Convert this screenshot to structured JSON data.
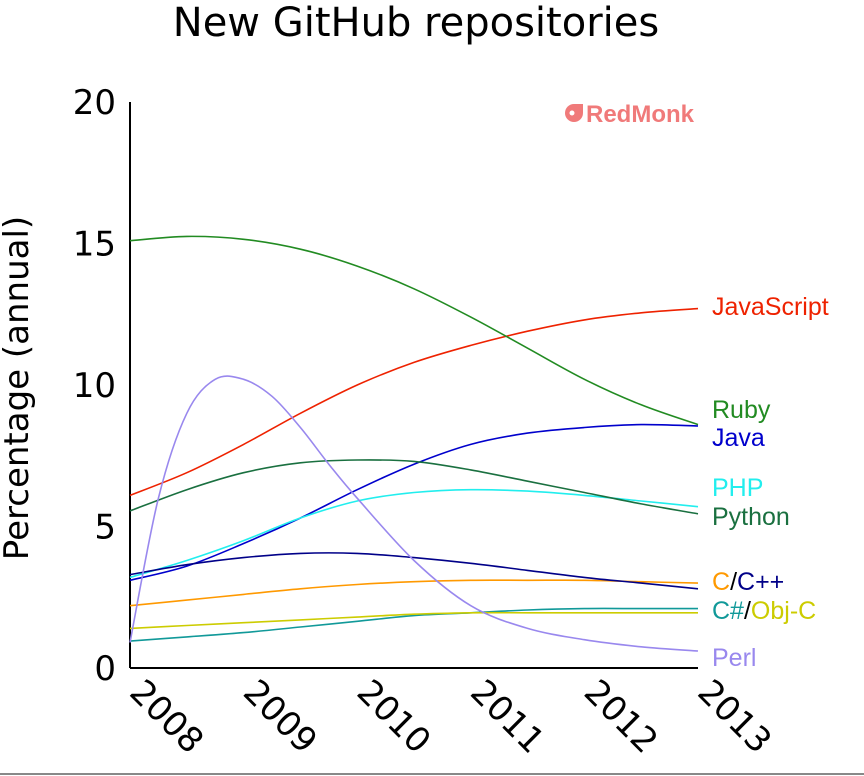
{
  "chart_data": {
    "type": "line",
    "title": "New GitHub repositories",
    "ylabel": "Percentage (annual)",
    "xlabel": "",
    "ylim": [
      0,
      20
    ],
    "xlim": [
      2008,
      2013
    ],
    "yticks": [
      0,
      5,
      10,
      15,
      20
    ],
    "xticks": [
      "2008",
      "2009",
      "2010",
      "2011",
      "2012",
      "2013"
    ],
    "grid": false,
    "logo_text": "RedMonk",
    "series": [
      {
        "key": "javascript",
        "name": "JavaScript",
        "color": "#ee2200",
        "x": [
          2008,
          2008.5,
          2009,
          2009.5,
          2010,
          2010.5,
          2011,
          2011.5,
          2012,
          2012.5,
          2013
        ],
        "y": [
          6.1,
          6.9,
          7.9,
          9.0,
          10.0,
          10.8,
          11.4,
          11.9,
          12.3,
          12.55,
          12.7
        ]
      },
      {
        "key": "ruby",
        "name": "Ruby",
        "color": "#228b22",
        "x": [
          2008,
          2008.5,
          2009,
          2009.5,
          2010,
          2010.5,
          2011,
          2011.5,
          2012,
          2012.5,
          2013
        ],
        "y": [
          15.1,
          15.25,
          15.15,
          14.8,
          14.2,
          13.4,
          12.4,
          11.3,
          10.2,
          9.3,
          8.6
        ]
      },
      {
        "key": "java",
        "name": "Java",
        "color": "#0000cc",
        "x": [
          2008,
          2008.5,
          2009,
          2009.5,
          2010,
          2010.5,
          2011,
          2011.5,
          2012,
          2012.5,
          2013
        ],
        "y": [
          3.1,
          3.6,
          4.4,
          5.3,
          6.3,
          7.2,
          7.9,
          8.3,
          8.5,
          8.6,
          8.55
        ]
      },
      {
        "key": "php",
        "name": "PHP",
        "color": "#22eeee",
        "x": [
          2008,
          2008.5,
          2009,
          2009.5,
          2010,
          2010.5,
          2011,
          2011.5,
          2012,
          2012.5,
          2013
        ],
        "y": [
          3.2,
          3.8,
          4.5,
          5.3,
          5.9,
          6.2,
          6.3,
          6.25,
          6.1,
          5.9,
          5.7
        ]
      },
      {
        "key": "python",
        "name": "Python",
        "color": "#1a7040",
        "x": [
          2008,
          2008.5,
          2009,
          2009.5,
          2010,
          2010.5,
          2011,
          2011.5,
          2012,
          2012.5,
          2013
        ],
        "y": [
          5.55,
          6.3,
          6.9,
          7.25,
          7.35,
          7.3,
          7.0,
          6.6,
          6.2,
          5.8,
          5.45
        ]
      },
      {
        "key": "c",
        "name": "C",
        "color": "#ff9900",
        "x": [
          2008,
          2008.5,
          2009,
          2009.5,
          2010,
          2010.5,
          2011,
          2011.5,
          2012,
          2012.5,
          2013
        ],
        "y": [
          2.2,
          2.4,
          2.6,
          2.8,
          2.95,
          3.05,
          3.1,
          3.1,
          3.1,
          3.05,
          3.0
        ]
      },
      {
        "key": "cpp",
        "name": "C++",
        "color": "#000088",
        "x": [
          2008,
          2008.5,
          2009,
          2009.5,
          2010,
          2010.5,
          2011,
          2011.5,
          2012,
          2012.5,
          2013
        ],
        "y": [
          3.3,
          3.65,
          3.9,
          4.05,
          4.05,
          3.9,
          3.7,
          3.45,
          3.2,
          3.0,
          2.8
        ]
      },
      {
        "key": "csharp",
        "name": "C#",
        "color": "#119999",
        "x": [
          2008,
          2008.5,
          2009,
          2009.5,
          2010,
          2010.5,
          2011,
          2011.5,
          2012,
          2012.5,
          2013
        ],
        "y": [
          0.95,
          1.1,
          1.25,
          1.45,
          1.65,
          1.85,
          1.95,
          2.05,
          2.1,
          2.1,
          2.1
        ]
      },
      {
        "key": "objc",
        "name": "Obj-C",
        "color": "#cccc00",
        "x": [
          2008,
          2008.5,
          2009,
          2009.5,
          2010,
          2010.5,
          2011,
          2011.5,
          2012,
          2012.5,
          2013
        ],
        "y": [
          1.4,
          1.5,
          1.6,
          1.7,
          1.8,
          1.9,
          1.95,
          1.95,
          1.95,
          1.95,
          1.95
        ]
      },
      {
        "key": "perl",
        "name": "Perl",
        "color": "#9988ee",
        "x": [
          2008,
          2008.25,
          2008.5,
          2008.75,
          2009,
          2009.25,
          2009.5,
          2009.75,
          2010,
          2010.5,
          2011,
          2011.5,
          2012,
          2012.5,
          2013
        ],
        "y": [
          0.9,
          6.0,
          9.0,
          10.2,
          10.2,
          9.6,
          8.5,
          7.2,
          6.0,
          3.8,
          2.2,
          1.4,
          1.0,
          0.75,
          0.6
        ]
      }
    ],
    "end_labels": [
      {
        "key": "javascript",
        "parts": [
          {
            "text": "JavaScript",
            "color": "#ee2200"
          }
        ]
      },
      {
        "key": "ruby",
        "parts": [
          {
            "text": "Ruby",
            "color": "#228b22"
          }
        ]
      },
      {
        "key": "java",
        "parts": [
          {
            "text": "Java",
            "color": "#0000cc"
          }
        ]
      },
      {
        "key": "php",
        "parts": [
          {
            "text": "PHP",
            "color": "#22eeee"
          }
        ]
      },
      {
        "key": "python",
        "parts": [
          {
            "text": "Python",
            "color": "#1a7040"
          }
        ]
      },
      {
        "key": "c-cpp",
        "parts": [
          {
            "text": "C",
            "color": "#ff9900"
          },
          {
            "text": "/",
            "color": "#000000"
          },
          {
            "text": "C++",
            "color": "#000088"
          }
        ]
      },
      {
        "key": "csharp-objc",
        "parts": [
          {
            "text": "C#",
            "color": "#119999"
          },
          {
            "text": "/",
            "color": "#000000"
          },
          {
            "text": "Obj-C",
            "color": "#cccc00"
          }
        ]
      },
      {
        "key": "perl",
        "parts": [
          {
            "text": "Perl",
            "color": "#9988ee"
          }
        ]
      }
    ]
  }
}
